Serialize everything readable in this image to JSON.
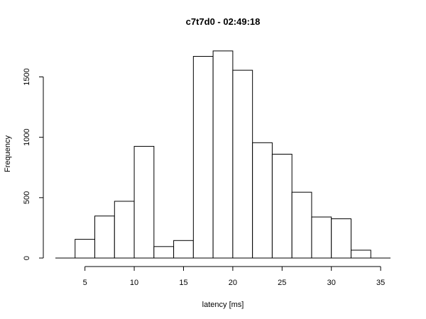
{
  "chart_data": {
    "type": "bar",
    "title": "c7t7d0 - 02:49:18",
    "xlabel": "latency [ms]",
    "ylabel": "Frequency",
    "xlim": [
      2,
      36
    ],
    "ylim": [
      0,
      1720
    ],
    "x_ticks": [
      5,
      10,
      15,
      20,
      25,
      30,
      35
    ],
    "y_ticks": [
      0,
      500,
      1000,
      1500
    ],
    "bins": [
      {
        "start": 2,
        "end": 4,
        "value": 0
      },
      {
        "start": 4,
        "end": 6,
        "value": 155
      },
      {
        "start": 6,
        "end": 8,
        "value": 348
      },
      {
        "start": 8,
        "end": 10,
        "value": 470
      },
      {
        "start": 10,
        "end": 12,
        "value": 925
      },
      {
        "start": 12,
        "end": 14,
        "value": 95
      },
      {
        "start": 14,
        "end": 16,
        "value": 145
      },
      {
        "start": 16,
        "end": 18,
        "value": 1670
      },
      {
        "start": 18,
        "end": 20,
        "value": 1715
      },
      {
        "start": 20,
        "end": 22,
        "value": 1555
      },
      {
        "start": 22,
        "end": 24,
        "value": 955
      },
      {
        "start": 24,
        "end": 26,
        "value": 860
      },
      {
        "start": 26,
        "end": 28,
        "value": 545
      },
      {
        "start": 28,
        "end": 30,
        "value": 340
      },
      {
        "start": 30,
        "end": 32,
        "value": 325
      },
      {
        "start": 32,
        "end": 34,
        "value": 65
      },
      {
        "start": 34,
        "end": 36,
        "value": 0
      }
    ],
    "grid": false,
    "legend": "none"
  }
}
